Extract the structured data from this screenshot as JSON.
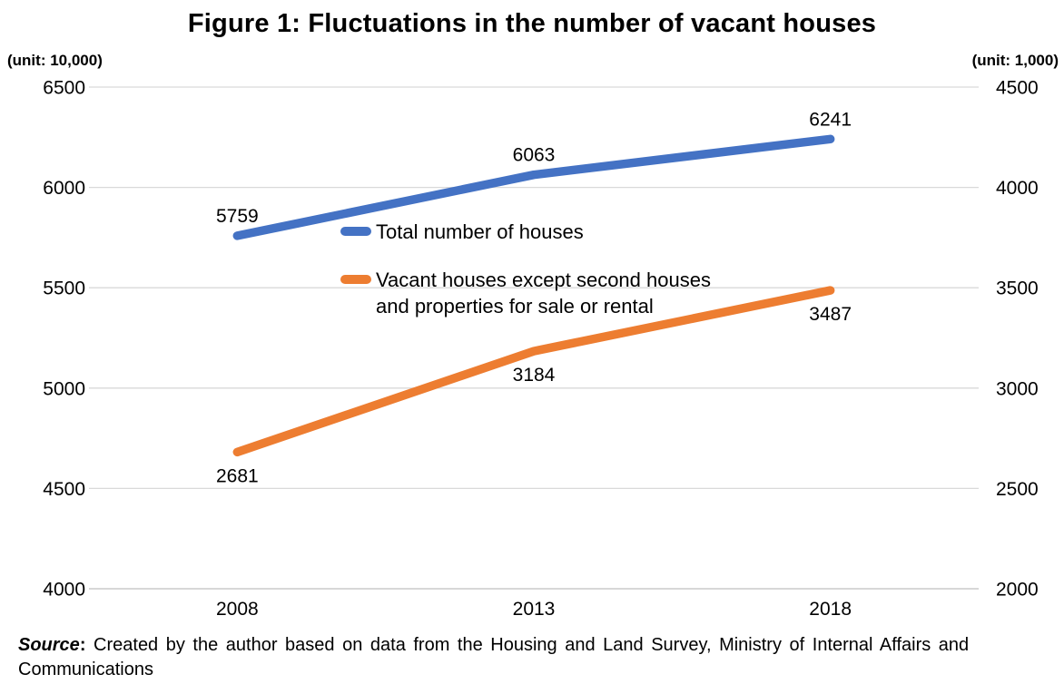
{
  "title": "Figure 1: Fluctuations in the number of vacant houses",
  "left_unit_label": "(unit: 10,000)",
  "right_unit_label": "(unit: 1,000)",
  "legend": {
    "total_label": "Total number of houses",
    "vacant_label_line1": "Vacant houses except second houses",
    "vacant_label_line2": "and properties for sale or rental"
  },
  "source": {
    "label": "Source",
    "separator": ": ",
    "text_line1": "Created by the author based on data from the Housing and Land Survey, Ministry of Internal Affairs and",
    "text_line2": "Communications"
  },
  "colors": {
    "total_series": "#4472C4",
    "vacant_series": "#ED7D31",
    "gridline": "#D9D9D9",
    "axis_line": "#BFBFBF",
    "text": "#000000"
  },
  "chart_data": {
    "type": "line",
    "categories": [
      "2008",
      "2013",
      "2018"
    ],
    "series": [
      {
        "name": "Total number of houses",
        "axis": "left",
        "values": [
          5759,
          6063,
          6241
        ],
        "color": "#4472C4",
        "label_position": "above"
      },
      {
        "name": "Vacant houses except second houses and properties for sale or rental",
        "axis": "right",
        "values": [
          2681,
          3184,
          3487
        ],
        "color": "#ED7D31",
        "label_position": "below"
      }
    ],
    "left_axis": {
      "unit": "(unit: 10,000)",
      "min": 4000,
      "max": 6500,
      "step": 500,
      "ticks": [
        6500,
        6000,
        5500,
        5000,
        4500,
        4000
      ]
    },
    "right_axis": {
      "unit": "(unit: 1,000)",
      "min": 2000,
      "max": 4500,
      "step": 500,
      "ticks": [
        4500,
        4000,
        3500,
        3000,
        2500,
        2000
      ]
    },
    "grid": true,
    "legend_position": "inside-plot-upper-left"
  }
}
